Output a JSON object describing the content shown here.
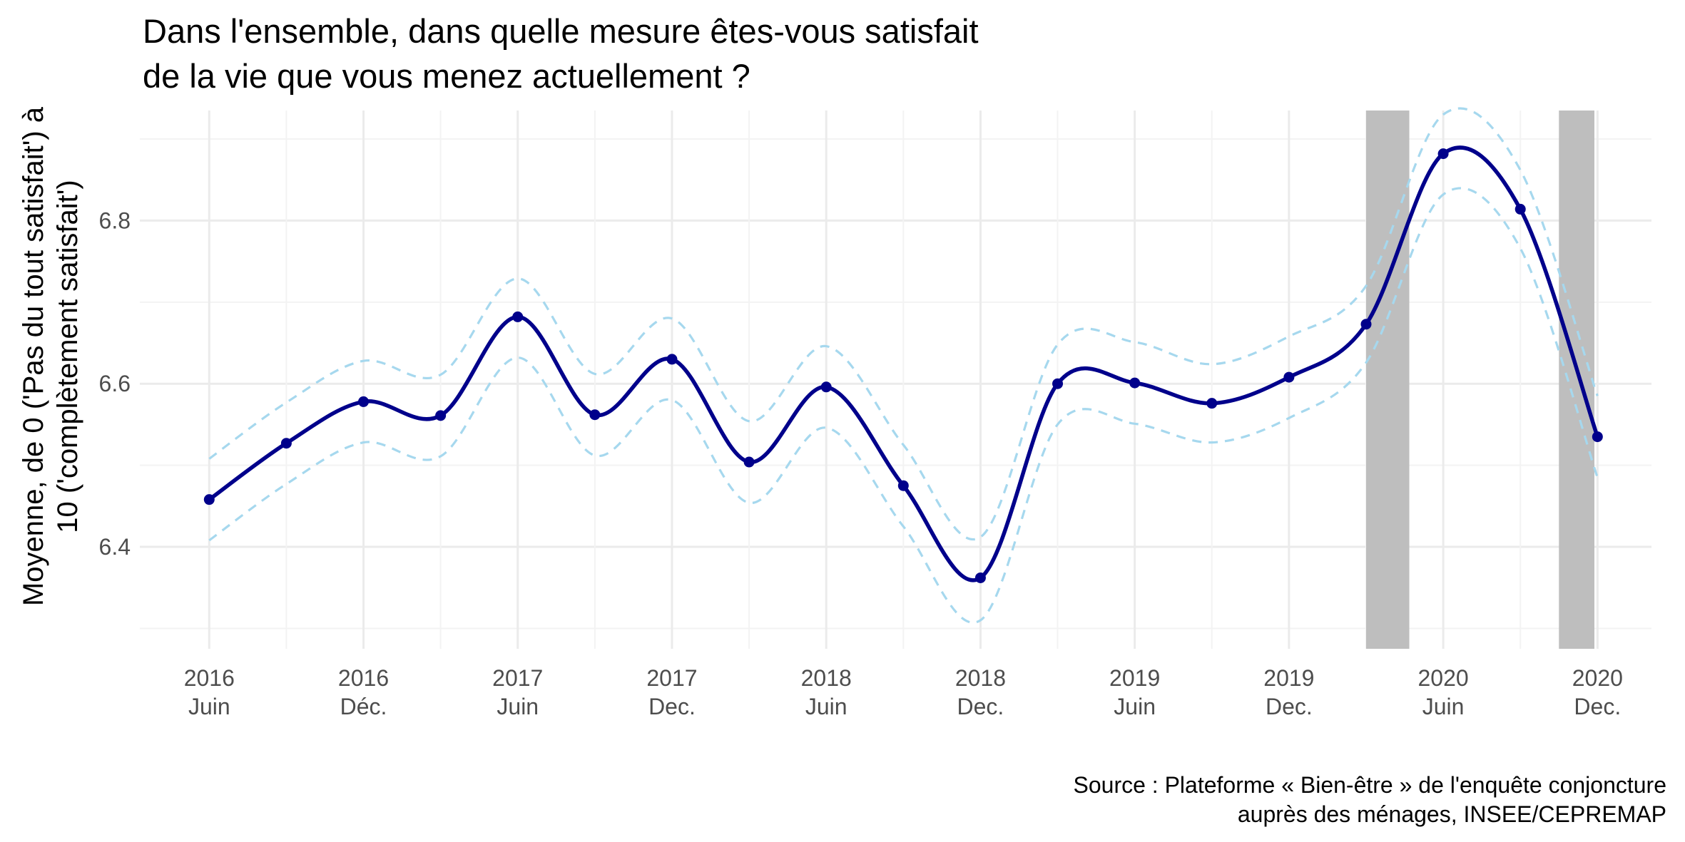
{
  "chart_data": {
    "type": "line",
    "title": "Dans l'ensemble, dans quelle mesure êtes-vous satisfait\n de la vie que vous menez actuellement ?",
    "ylabel": "Moyenne, de 0 ('Pas du tout satisfait') à\n10 ('complètement satisfait')",
    "xlabel": "",
    "caption": "Source : Plateforme « Bien-être » de l'enquête conjoncture\nauprès des ménages, INSEE/CEPREMAP",
    "ylim": [
      6.275,
      6.935
    ],
    "yticks": [
      6.4,
      6.6,
      6.8
    ],
    "xlim": [
      -0.45,
      9.35
    ],
    "xticks": [
      {
        "x": 0,
        "label": "2016\nJuin"
      },
      {
        "x": 1,
        "label": "2016\nDéc."
      },
      {
        "x": 2,
        "label": "2017\nJuin"
      },
      {
        "x": 3,
        "label": "2017\nDec."
      },
      {
        "x": 4,
        "label": "2018\nJuin"
      },
      {
        "x": 5,
        "label": "2018\nDec."
      },
      {
        "x": 6,
        "label": "2019\nJuin"
      },
      {
        "x": 7,
        "label": "2019\nDec."
      },
      {
        "x": 8,
        "label": "2020\nJuin"
      },
      {
        "x": 9,
        "label": "2020\nDec."
      }
    ],
    "grid": true,
    "shaded_periods": [
      {
        "start": 7.5,
        "end": 7.78
      },
      {
        "start": 8.75,
        "end": 8.98
      }
    ],
    "series": [
      {
        "role": "mean",
        "color": "#00008B",
        "points": [
          [
            0,
            6.458
          ],
          [
            0.5,
            6.527
          ],
          [
            1,
            6.578
          ],
          [
            1.5,
            6.561
          ],
          [
            2,
            6.682
          ],
          [
            2.5,
            6.562
          ],
          [
            3,
            6.63
          ],
          [
            3.5,
            6.504
          ],
          [
            4,
            6.596
          ],
          [
            4.5,
            6.475
          ],
          [
            5,
            6.362
          ],
          [
            5.5,
            6.6
          ],
          [
            6,
            6.601
          ],
          [
            6.5,
            6.576
          ],
          [
            7,
            6.608
          ],
          [
            7.5,
            6.673
          ],
          [
            8,
            6.882
          ],
          [
            8.5,
            6.814
          ],
          [
            9,
            6.535
          ]
        ]
      },
      {
        "role": "upper-bound",
        "color": "#A6D8EE",
        "points": [
          [
            0,
            6.508
          ],
          [
            0.5,
            6.577
          ],
          [
            1,
            6.628
          ],
          [
            1.5,
            6.611
          ],
          [
            2,
            6.729
          ],
          [
            2.5,
            6.612
          ],
          [
            3,
            6.68
          ],
          [
            3.5,
            6.554
          ],
          [
            4,
            6.646
          ],
          [
            4.5,
            6.525
          ],
          [
            5,
            6.412
          ],
          [
            5.5,
            6.648
          ],
          [
            6,
            6.651
          ],
          [
            6.5,
            6.624
          ],
          [
            7,
            6.658
          ],
          [
            7.5,
            6.72
          ],
          [
            8,
            6.93
          ],
          [
            8.5,
            6.862
          ],
          [
            9,
            6.585
          ]
        ]
      },
      {
        "role": "lower-bound",
        "color": "#A6D8EE",
        "points": [
          [
            0,
            6.408
          ],
          [
            0.5,
            6.477
          ],
          [
            1,
            6.528
          ],
          [
            1.5,
            6.511
          ],
          [
            2,
            6.632
          ],
          [
            2.5,
            6.512
          ],
          [
            3,
            6.58
          ],
          [
            3.5,
            6.454
          ],
          [
            4,
            6.546
          ],
          [
            4.5,
            6.425
          ],
          [
            5,
            6.31
          ],
          [
            5.5,
            6.55
          ],
          [
            6,
            6.551
          ],
          [
            6.5,
            6.528
          ],
          [
            7,
            6.558
          ],
          [
            7.5,
            6.626
          ],
          [
            8,
            6.832
          ],
          [
            8.5,
            6.766
          ],
          [
            9,
            6.485
          ]
        ]
      }
    ]
  },
  "colors": {
    "mean_line": "#00008B",
    "bounds": "#A6D8EE",
    "shade": "#BEBEBE",
    "grid_major": "#EBEBEB",
    "grid_minor": "#F3F3F3",
    "axis_text": "#4D4D4D"
  }
}
